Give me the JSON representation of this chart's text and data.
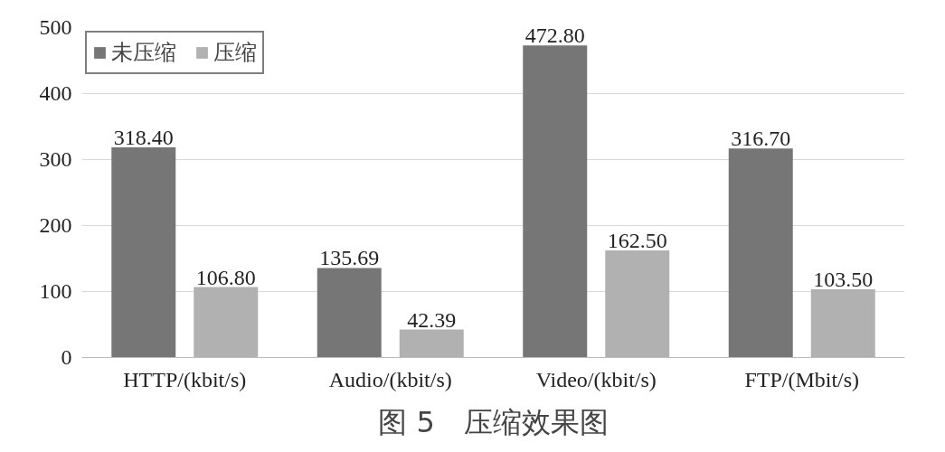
{
  "chart_data": {
    "type": "bar",
    "title": "图 5　压缩效果图",
    "categories": [
      "HTTP/(kbit/s)",
      "Audio/(kbit/s)",
      "Video/(kbit/s)",
      "FTP/(Mbit/s)"
    ],
    "series": [
      {
        "name": "未压缩",
        "color": "#767676",
        "values": [
          318.4,
          135.69,
          472.8,
          316.7
        ],
        "value_labels": [
          "318.40",
          "135.69",
          "472.80",
          "316.70"
        ]
      },
      {
        "name": "压缩",
        "color": "#b1b1b1",
        "values": [
          106.8,
          42.39,
          162.5,
          103.5
        ],
        "value_labels": [
          "106.80",
          "42.39",
          "162.50",
          "103.50"
        ]
      }
    ],
    "ylim": [
      0,
      500
    ],
    "yticks": [
      0,
      100,
      200,
      300,
      400,
      500
    ],
    "grid": "y",
    "legend": "top left"
  }
}
